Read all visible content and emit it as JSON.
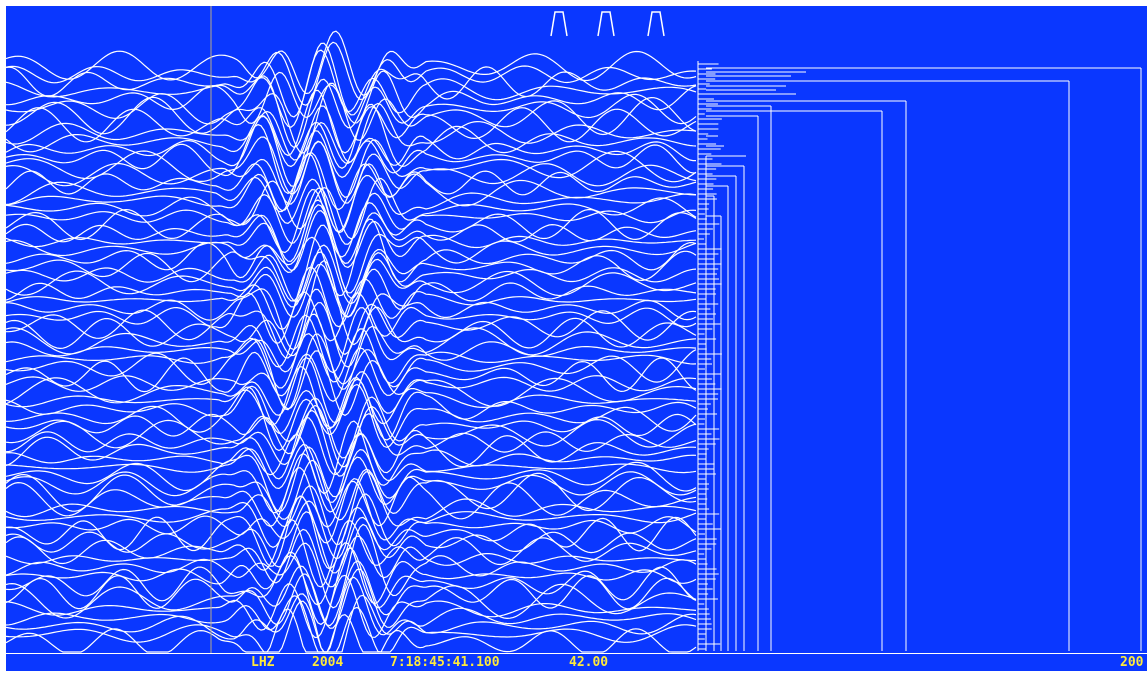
{
  "colors": {
    "background": "#0a37ff",
    "trace": "#ffffff",
    "status_text": "#ffea3c",
    "cursor": "#b8a88a"
  },
  "status": {
    "channel": "LHZ",
    "year": "2004",
    "time": "7:18:45:41.100",
    "value": "42.00",
    "right_value": "200"
  }
}
